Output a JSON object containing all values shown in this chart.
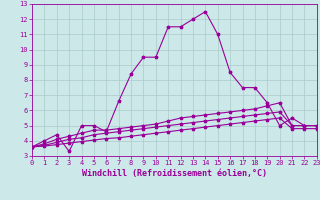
{
  "background_color": "#cce8e8",
  "grid_color": "#aacccc",
  "line_color": "#990099",
  "xlabel": "Windchill (Refroidissement éolien,°C)",
  "xlim": [
    0,
    23
  ],
  "ylim": [
    3,
    13
  ],
  "xticks": [
    0,
    1,
    2,
    3,
    4,
    5,
    6,
    7,
    8,
    9,
    10,
    11,
    12,
    13,
    14,
    15,
    16,
    17,
    18,
    19,
    20,
    21,
    22,
    23
  ],
  "yticks": [
    3,
    4,
    5,
    6,
    7,
    8,
    9,
    10,
    11,
    12,
    13
  ],
  "curves": [
    {
      "x": [
        0,
        1,
        2,
        3,
        4,
        5,
        6,
        7,
        8,
        9,
        10,
        11,
        12,
        13,
        14,
        15,
        16,
        17,
        18,
        19,
        20,
        21,
        22,
        23
      ],
      "y": [
        3.6,
        4.0,
        4.4,
        3.3,
        5.0,
        5.0,
        4.6,
        6.6,
        8.4,
        9.5,
        9.5,
        11.5,
        11.5,
        12.0,
        12.5,
        11.0,
        8.5,
        7.5,
        7.5,
        6.5,
        5.0,
        5.5,
        5.0,
        5.0
      ]
    },
    {
      "x": [
        0,
        1,
        2,
        3,
        4,
        5,
        6,
        7,
        8,
        9,
        10,
        11,
        12,
        13,
        14,
        15,
        16,
        17,
        18,
        19,
        20,
        21,
        22,
        23
      ],
      "y": [
        3.6,
        3.8,
        4.1,
        4.3,
        4.5,
        4.7,
        4.7,
        4.8,
        4.9,
        5.0,
        5.1,
        5.3,
        5.5,
        5.6,
        5.7,
        5.8,
        5.9,
        6.0,
        6.1,
        6.3,
        6.5,
        5.0,
        5.0,
        5.0
      ]
    },
    {
      "x": [
        0,
        1,
        2,
        3,
        4,
        5,
        6,
        7,
        8,
        9,
        10,
        11,
        12,
        13,
        14,
        15,
        16,
        17,
        18,
        19,
        20,
        21,
        22,
        23
      ],
      "y": [
        3.6,
        3.7,
        3.9,
        4.1,
        4.2,
        4.4,
        4.5,
        4.6,
        4.7,
        4.8,
        4.9,
        5.0,
        5.1,
        5.2,
        5.3,
        5.4,
        5.5,
        5.6,
        5.7,
        5.8,
        5.9,
        5.0,
        5.0,
        5.0
      ]
    },
    {
      "x": [
        0,
        1,
        2,
        3,
        4,
        5,
        6,
        7,
        8,
        9,
        10,
        11,
        12,
        13,
        14,
        15,
        16,
        17,
        18,
        19,
        20,
        21,
        22,
        23
      ],
      "y": [
        3.6,
        3.65,
        3.75,
        3.85,
        3.95,
        4.05,
        4.15,
        4.2,
        4.3,
        4.4,
        4.5,
        4.6,
        4.7,
        4.8,
        4.9,
        5.0,
        5.1,
        5.2,
        5.3,
        5.4,
        5.5,
        4.8,
        4.8,
        4.8
      ]
    }
  ],
  "marker": "*",
  "markersize": 2.5,
  "linewidth": 0.8,
  "tick_fontsize": 5.0,
  "label_fontsize": 6.0
}
